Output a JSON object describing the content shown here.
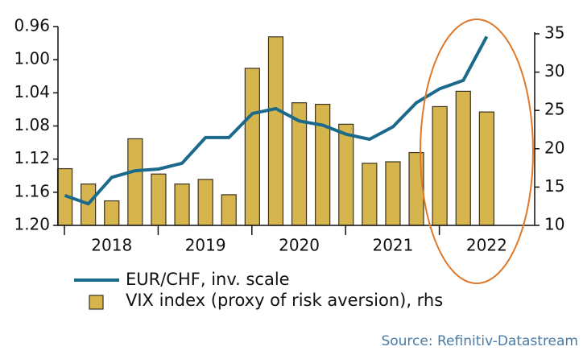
{
  "chart_data": {
    "type": "bar-line",
    "categories": [
      null,
      null,
      "2018",
      null,
      null,
      null,
      "2019",
      null,
      null,
      null,
      "2020",
      null,
      null,
      null,
      "2021",
      null,
      null,
      null,
      "2022",
      null
    ],
    "series": [
      {
        "name": "EUR/CHF, inv. scale",
        "type": "line",
        "axis": "y",
        "color": "#1b6a8c",
        "values": [
          1.164,
          1.174,
          1.142,
          1.134,
          1.132,
          1.125,
          1.094,
          1.094,
          1.065,
          1.059,
          1.074,
          1.079,
          1.09,
          1.096,
          1.081,
          1.052,
          1.035,
          1.025,
          0.972,
          null
        ]
      },
      {
        "name": "VIX index (proxy of risk aversion), rhs",
        "type": "bar",
        "axis": "y2",
        "color": "#d6b54e",
        "values": [
          17.4,
          15.4,
          13.2,
          21.3,
          16.7,
          15.4,
          16.0,
          14.0,
          30.5,
          34.6,
          26.0,
          25.8,
          23.2,
          18.1,
          18.3,
          19.5,
          25.5,
          27.5,
          24.8,
          null
        ]
      }
    ],
    "ylim": [
      0.96,
      1.2
    ],
    "y_inverted": true,
    "yticks": [
      0.96,
      {
        "value": 1,
        "label": "1.00"
      },
      1.04,
      1.08,
      1.12,
      1.16,
      {
        "value": 1.2,
        "label": "1.20"
      }
    ],
    "y2lim": [
      10,
      35
    ],
    "y2ticks": [
      10,
      15,
      20,
      25,
      30,
      35
    ],
    "source": "Source: Refinitiv-Datastream"
  }
}
